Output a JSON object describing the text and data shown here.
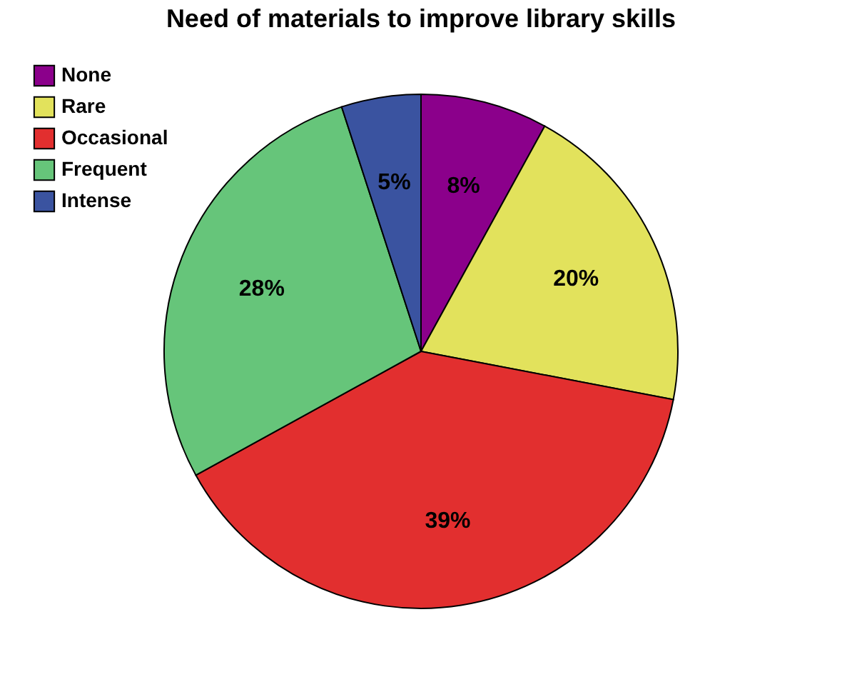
{
  "chart_data": {
    "type": "pie",
    "title": "Need of materials to improve library skills",
    "categories": [
      "None",
      "Rare",
      "Occasional",
      "Frequent",
      "Intense"
    ],
    "values": [
      8,
      20,
      39,
      28,
      5
    ],
    "value_labels": [
      "8%",
      "20%",
      "39%",
      "28%",
      "5%"
    ],
    "colors": [
      "#8b008b",
      "#e2e25c",
      "#e22f2f",
      "#66c57a",
      "#3a53a0"
    ],
    "legend": "top left"
  }
}
